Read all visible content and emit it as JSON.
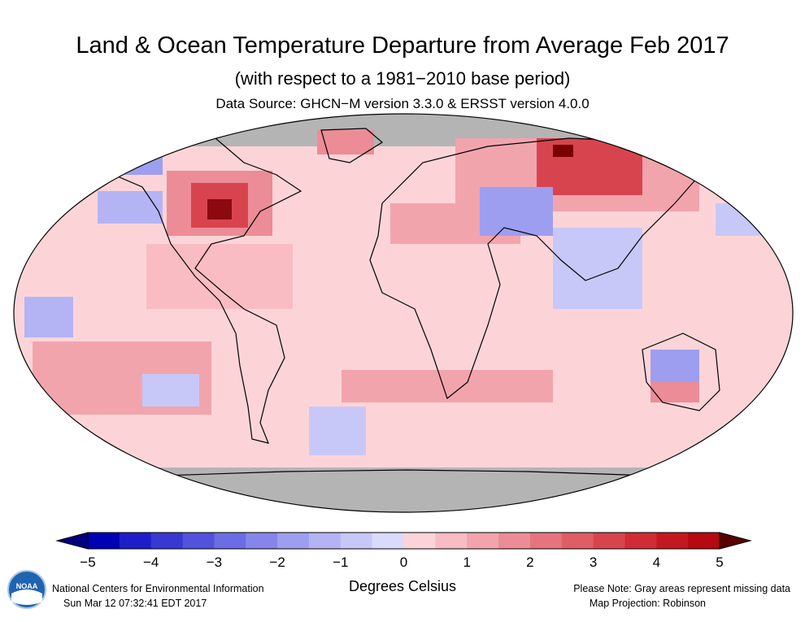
{
  "title": "Land & Ocean Temperature Departure from Average Feb 2017",
  "subtitle": "(with respect to a 1981−2010 base period)",
  "source": "Data Source: GHCN−M version 3.3.0 & ERSST version 4.0.0",
  "colorbar": {
    "unit_label": "Degrees Celsius",
    "tick_labels": [
      "−5",
      "−4",
      "−3",
      "−2",
      "−1",
      "0",
      "1",
      "2",
      "3",
      "4",
      "5"
    ],
    "range": [
      -5,
      5
    ],
    "step": 0.5,
    "colors": [
      "#0000b4",
      "#1e1ec8",
      "#3838d2",
      "#5252dc",
      "#6c6ce4",
      "#8686ea",
      "#9e9ef0",
      "#b4b4f4",
      "#c8c8f8",
      "#dadafc",
      "#fcd4d8",
      "#f8bcc2",
      "#f2a4ac",
      "#ec8c96",
      "#e6747e",
      "#e05c66",
      "#d8444e",
      "#d02c36",
      "#c41820",
      "#b40a10"
    ]
  },
  "map": {
    "projection": "Robinson",
    "missing_color": "#b4b4b4",
    "ocean_default_color": "#fcd4d8"
  },
  "footer": {
    "org": "National Centers for Environmental Information",
    "timestamp": "Sun Mar 12 07:32:41 EDT 2017",
    "note": "Please Note: Gray areas represent missing data",
    "projection_label": "Map Projection: Robinson"
  },
  "logo_text": "NOAA"
}
